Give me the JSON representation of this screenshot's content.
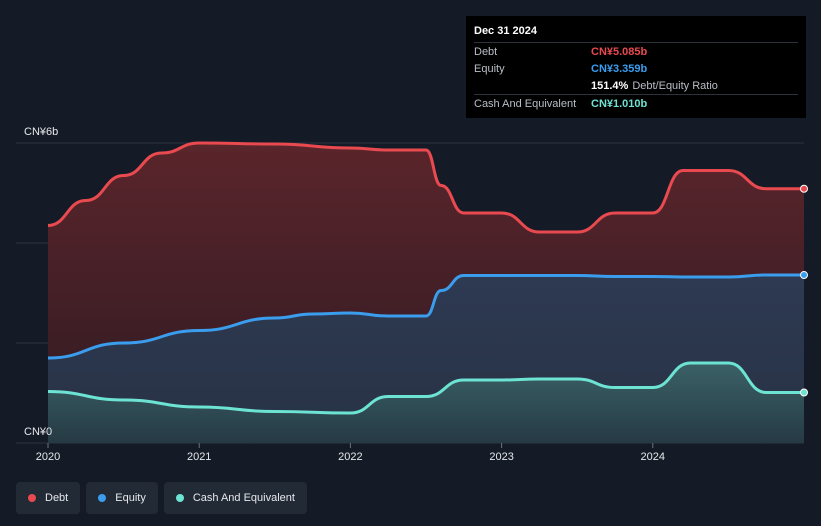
{
  "tooltip": {
    "date": "Dec 31 2024",
    "rows": [
      {
        "label": "Debt",
        "value": "CN¥5.085b",
        "color": "#e84a4f"
      },
      {
        "label": "Equity",
        "value": "CN¥3.359b",
        "color": "#3b9ded"
      },
      {
        "label": "",
        "value": "151.4%",
        "sub": "Debt/Equity Ratio",
        "color": "#ffffff"
      },
      {
        "label": "Cash And Equivalent",
        "value": "CN¥1.010b",
        "color": "#6de3d3"
      }
    ]
  },
  "legend": [
    {
      "label": "Debt",
      "color": "#e84a4f"
    },
    {
      "label": "Equity",
      "color": "#3b9ded"
    },
    {
      "label": "Cash And Equivalent",
      "color": "#6de3d3"
    }
  ],
  "chart_data": {
    "type": "area",
    "ylim": [
      0,
      6
    ],
    "y_tick_labels": [
      {
        "value": 6,
        "label": "CN¥6b"
      },
      {
        "value": 0,
        "label": "CN¥0"
      }
    ],
    "xlim": [
      2020.0,
      2025.0
    ],
    "x_tick_labels": [
      {
        "value": 2020,
        "label": "2020"
      },
      {
        "value": 2021,
        "label": "2021"
      },
      {
        "value": 2022,
        "label": "2022"
      },
      {
        "value": 2023,
        "label": "2023"
      },
      {
        "value": 2024,
        "label": "2024"
      }
    ],
    "grid": true,
    "series": [
      {
        "name": "Debt",
        "color": "#e84a4f",
        "points": [
          [
            2020.0,
            4.35
          ],
          [
            2020.25,
            4.85
          ],
          [
            2020.5,
            5.35
          ],
          [
            2020.75,
            5.8
          ],
          [
            2021.0,
            6.0
          ],
          [
            2021.5,
            5.98
          ],
          [
            2022.0,
            5.9
          ],
          [
            2022.25,
            5.86
          ],
          [
            2022.5,
            5.86
          ],
          [
            2022.6,
            5.15
          ],
          [
            2022.75,
            4.6
          ],
          [
            2023.0,
            4.6
          ],
          [
            2023.25,
            4.22
          ],
          [
            2023.5,
            4.22
          ],
          [
            2023.75,
            4.6
          ],
          [
            2024.0,
            4.6
          ],
          [
            2024.2,
            5.45
          ],
          [
            2024.5,
            5.45
          ],
          [
            2024.75,
            5.085
          ],
          [
            2025.0,
            5.085
          ]
        ]
      },
      {
        "name": "Equity",
        "color": "#3b9ded",
        "points": [
          [
            2020.0,
            1.7
          ],
          [
            2020.5,
            2.0
          ],
          [
            2021.0,
            2.25
          ],
          [
            2021.5,
            2.5
          ],
          [
            2021.75,
            2.58
          ],
          [
            2022.0,
            2.6
          ],
          [
            2022.25,
            2.54
          ],
          [
            2022.5,
            2.54
          ],
          [
            2022.6,
            3.05
          ],
          [
            2022.75,
            3.35
          ],
          [
            2023.0,
            3.35
          ],
          [
            2023.25,
            3.35
          ],
          [
            2023.5,
            3.35
          ],
          [
            2023.75,
            3.33
          ],
          [
            2024.0,
            3.33
          ],
          [
            2024.25,
            3.32
          ],
          [
            2024.5,
            3.32
          ],
          [
            2024.75,
            3.36
          ],
          [
            2025.0,
            3.359
          ]
        ]
      },
      {
        "name": "Cash And Equivalent",
        "color": "#6de3d3",
        "points": [
          [
            2020.0,
            1.03
          ],
          [
            2020.5,
            0.86
          ],
          [
            2021.0,
            0.72
          ],
          [
            2021.5,
            0.63
          ],
          [
            2022.0,
            0.6
          ],
          [
            2022.25,
            0.93
          ],
          [
            2022.5,
            0.93
          ],
          [
            2022.75,
            1.26
          ],
          [
            2023.0,
            1.26
          ],
          [
            2023.25,
            1.28
          ],
          [
            2023.5,
            1.28
          ],
          [
            2023.75,
            1.11
          ],
          [
            2024.0,
            1.11
          ],
          [
            2024.25,
            1.6
          ],
          [
            2024.5,
            1.6
          ],
          [
            2024.75,
            1.01
          ],
          [
            2025.0,
            1.01
          ]
        ]
      }
    ]
  }
}
